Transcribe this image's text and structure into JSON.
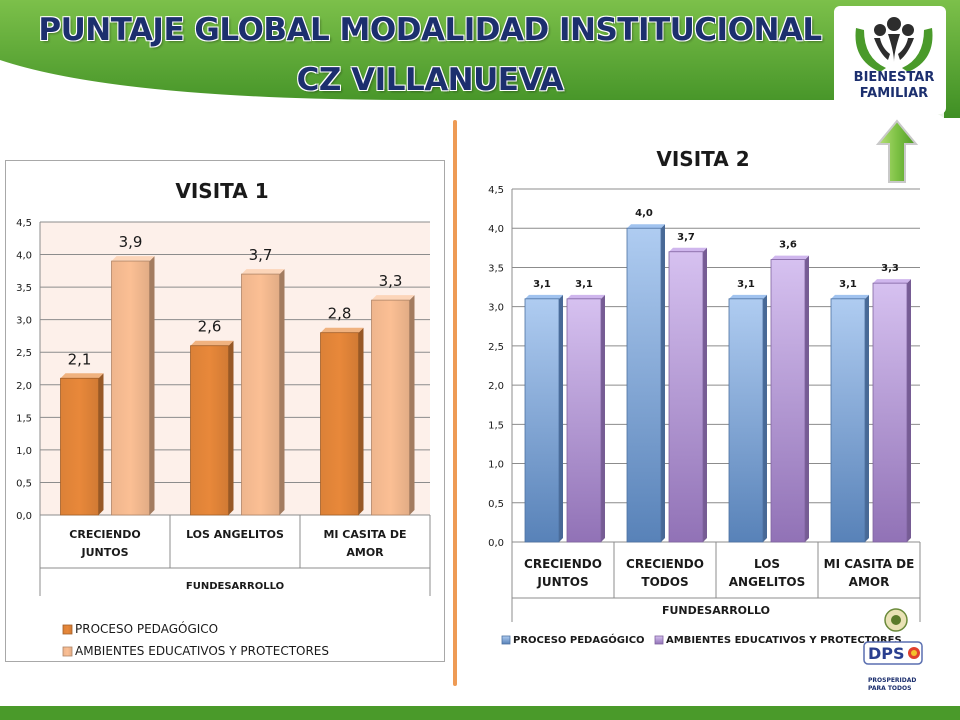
{
  "header": {
    "title_line1": "PUNTAJE GLOBAL MODALIDAD INSTITUCIONAL",
    "title_line2": "CZ VILLANUEVA",
    "logo_line1": "BIENESTAR",
    "logo_line2": "FAMILIAR",
    "dps_logo": "DPS",
    "dps_tagline_1": "PROSPERIDAD",
    "dps_tagline_2": "PARA TODOS",
    "accent_color": "#4a9a2a",
    "title_color": "#1c2f6e"
  },
  "chart_data": [
    {
      "type": "bar",
      "title": "VISITA 1",
      "categories": [
        [
          "CRECIENDO",
          "JUNTOS"
        ],
        [
          "LOS ANGELITOS"
        ],
        [
          "MI CASITA DE",
          "AMOR"
        ]
      ],
      "group_label": "FUNDESARROLLO",
      "series": [
        {
          "name": "PROCESO PEDAGÓGICO",
          "values": [
            2.1,
            2.6,
            2.8
          ],
          "labels": [
            "2,1",
            "2,6",
            "2,8"
          ],
          "color": "#e8883a"
        },
        {
          "name": "AMBIENTES EDUCATIVOS Y PROTECTORES",
          "values": [
            3.9,
            3.7,
            3.3
          ],
          "labels": [
            "3,9",
            "3,7",
            "3,3"
          ],
          "color": "#fbbf94"
        }
      ],
      "ylim": [
        0,
        4.5
      ],
      "yticks": [
        "0,0",
        "0,5",
        "1,0",
        "1,5",
        "2,0",
        "2,5",
        "3,0",
        "3,5",
        "4,0",
        "4,5"
      ],
      "grid": true,
      "legend_placement": "bottom"
    },
    {
      "type": "bar",
      "title": "VISITA 2",
      "categories": [
        [
          "CRECIENDO",
          "JUNTOS"
        ],
        [
          "CRECIENDO",
          "TODOS"
        ],
        [
          "LOS",
          "ANGELITOS"
        ],
        [
          "MI CASITA DE",
          "AMOR"
        ]
      ],
      "group_label": "FUNDESARROLLO",
      "series": [
        {
          "name": "PROCESO PEDAGÓGICO",
          "values": [
            3.1,
            4.0,
            3.1,
            3.1
          ],
          "labels": [
            "3,1",
            "4,0",
            "3,1",
            "3,1"
          ],
          "color": "#6ea2e6"
        },
        {
          "name": "AMBIENTES EDUCATIVOS Y PROTECTORES",
          "values": [
            3.1,
            3.7,
            3.6,
            3.3
          ],
          "labels": [
            "3,1",
            "3,7",
            "3,6",
            "3,3"
          ],
          "color": "#b58ee3"
        }
      ],
      "ylim": [
        0,
        4.5
      ],
      "yticks": [
        "0,0",
        "0,5",
        "1,0",
        "1,5",
        "2,0",
        "2,5",
        "3,0",
        "3,5",
        "4,0",
        "4,5"
      ],
      "grid": true,
      "legend_placement": "bottom"
    }
  ]
}
